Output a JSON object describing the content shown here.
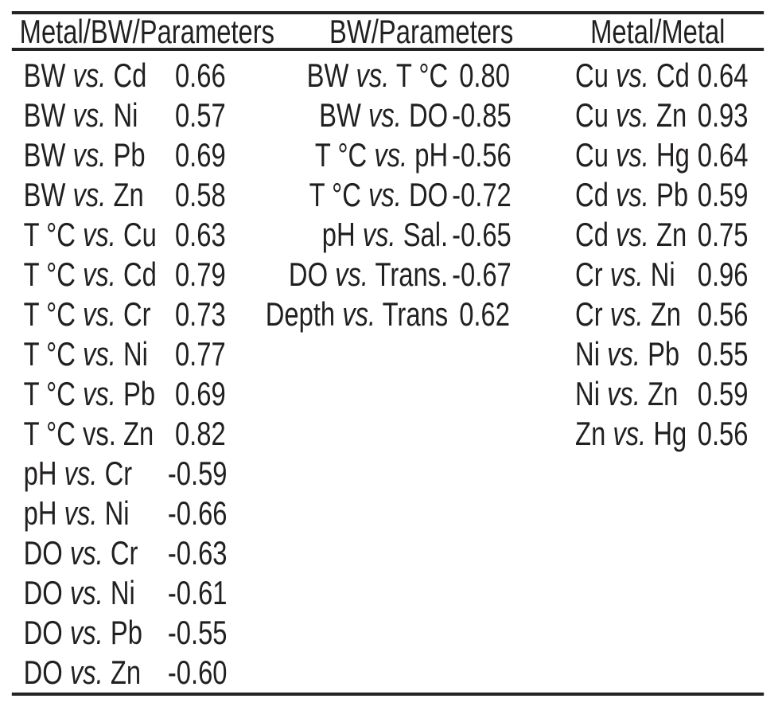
{
  "page": {
    "background": "#ffffff",
    "text_color": "#221f20",
    "rule_color": "#262324"
  },
  "table": {
    "columns": [
      {
        "header": "Metal/BW/Parameters",
        "rows": [
          {
            "a": "BW",
            "vs": "vs.",
            "b": "Cd",
            "value": "0.66",
            "vs_italic": true
          },
          {
            "a": "BW",
            "vs": "vs.",
            "b": "Ni",
            "value": "0.57",
            "vs_italic": true
          },
          {
            "a": "BW",
            "vs": "vs.",
            "b": "Pb",
            "value": "0.69",
            "vs_italic": true
          },
          {
            "a": "BW",
            "vs": "vs.",
            "b": "Zn",
            "value": "0.58",
            "vs_italic": true
          },
          {
            "a": "T °C",
            "vs": "vs.",
            "b": "Cu",
            "value": "0.63",
            "vs_italic": true
          },
          {
            "a": "T °C",
            "vs": "vs.",
            "b": "Cd",
            "value": "0.79",
            "vs_italic": true
          },
          {
            "a": "T °C",
            "vs": "vs.",
            "b": "Cr",
            "value": "0.73",
            "vs_italic": true
          },
          {
            "a": "T °C",
            "vs": "vs.",
            "b": "Ni",
            "value": "0.77",
            "vs_italic": true
          },
          {
            "a": "T °C",
            "vs": "vs.",
            "b": "Pb",
            "value": "0.69",
            "vs_italic": true
          },
          {
            "a": "T °C",
            "vs": "vs.",
            "b": "Zn",
            "value": "0.82",
            "vs_italic": false
          },
          {
            "a": "pH",
            "vs": "vs.",
            "b": "Cr",
            "value": "-0.59",
            "vs_italic": true
          },
          {
            "a": "pH",
            "vs": "vs.",
            "b": "Ni",
            "value": "-0.66",
            "vs_italic": true
          },
          {
            "a": "DO",
            "vs": "vs.",
            "b": "Cr",
            "value": "-0.63",
            "vs_italic": true
          },
          {
            "a": "DO",
            "vs": "vs.",
            "b": "Ni",
            "value": "-0.61",
            "vs_italic": true
          },
          {
            "a": "DO",
            "vs": "vs.",
            "b": "Pb",
            "value": "-0.55",
            "vs_italic": true
          },
          {
            "a": "DO",
            "vs": "vs.",
            "b": "Zn",
            "value": "-0.60",
            "vs_italic": true
          }
        ]
      },
      {
        "header": "BW/Parameters",
        "rows": [
          {
            "a": "BW",
            "vs": "vs.",
            "b": "T °C",
            "value": "0.80",
            "vs_italic": true
          },
          {
            "a": "BW",
            "vs": "vs.",
            "b": "DO",
            "value": "-0.85",
            "vs_italic": true
          },
          {
            "a": "T °C",
            "vs": "vs.",
            "b": "pH",
            "value": "-0.56",
            "vs_italic": true
          },
          {
            "a": "T °C",
            "vs": "vs.",
            "b": "DO",
            "value": "-0.72",
            "vs_italic": true
          },
          {
            "a": "pH",
            "vs": "vs.",
            "b": "Sal.",
            "value": "-0.65",
            "vs_italic": true
          },
          {
            "a": "DO",
            "vs": "vs.",
            "b": "Trans.",
            "value": "-0.67",
            "vs_italic": true
          },
          {
            "a": "Depth",
            "vs": "vs.",
            "b": "Trans",
            "value": "0.62",
            "vs_italic": true
          }
        ]
      },
      {
        "header": "Metal/Metal",
        "rows": [
          {
            "a": "Cu",
            "vs": "vs.",
            "b": "Cd",
            "value": "0.64",
            "vs_italic": true
          },
          {
            "a": "Cu",
            "vs": "vs.",
            "b": "Zn",
            "value": "0.93",
            "vs_italic": true
          },
          {
            "a": "Cu",
            "vs": "vs.",
            "b": "Hg",
            "value": "0.64",
            "vs_italic": true
          },
          {
            "a": "Cd",
            "vs": "vs.",
            "b": "Pb",
            "value": "0.59",
            "vs_italic": true
          },
          {
            "a": "Cd",
            "vs": "vs.",
            "b": "Zn",
            "value": "0.75",
            "vs_italic": true
          },
          {
            "a": "Cr",
            "vs": "vs.",
            "b": "Ni",
            "value": "0.96",
            "vs_italic": true
          },
          {
            "a": "Cr",
            "vs": "vs.",
            "b": "Zn",
            "value": "0.56",
            "vs_italic": true
          },
          {
            "a": "Ni",
            "vs": "vs.",
            "b": "Pb",
            "value": "0.55",
            "vs_italic": true
          },
          {
            "a": "Ni",
            "vs": "vs.",
            "b": "Zn",
            "value": "0.59",
            "vs_italic": true
          },
          {
            "a": "Zn",
            "vs": "vs.",
            "b": "Hg",
            "value": "0.56",
            "vs_italic": true
          }
        ]
      }
    ]
  }
}
